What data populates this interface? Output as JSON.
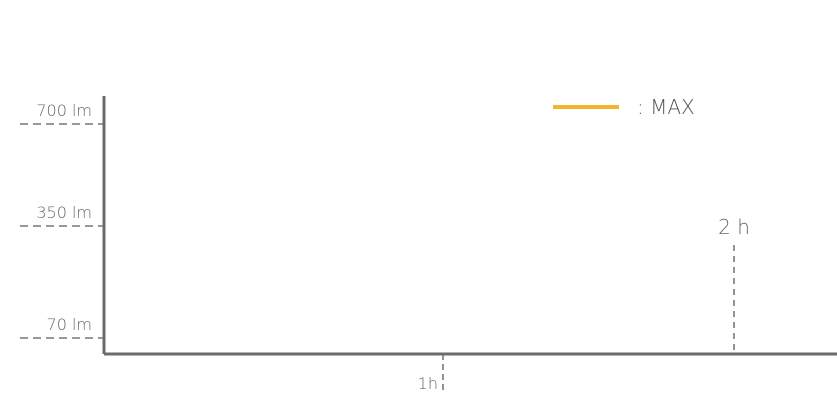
{
  "chart_data": {
    "type": "line",
    "title": "",
    "xlabel": "",
    "ylabel": "",
    "x_ticks": [
      {
        "value": 1,
        "label": "1h"
      }
    ],
    "y_ticks": [
      {
        "value": 70,
        "label": "70 lm"
      },
      {
        "value": 350,
        "label": "350 lm"
      },
      {
        "value": 700,
        "label": "700 lm"
      }
    ],
    "annotations": [
      {
        "x": 2,
        "label": "2 h"
      }
    ],
    "series": [
      {
        "name": ": MAX",
        "color": "#F4B42E",
        "points": []
      }
    ],
    "legend": {
      "position": "top-right"
    },
    "grid": false,
    "colors": {
      "axis": "#6B6B6B",
      "guide": "#777777",
      "text": "#666666",
      "max_series": "#F4B42E"
    }
  }
}
